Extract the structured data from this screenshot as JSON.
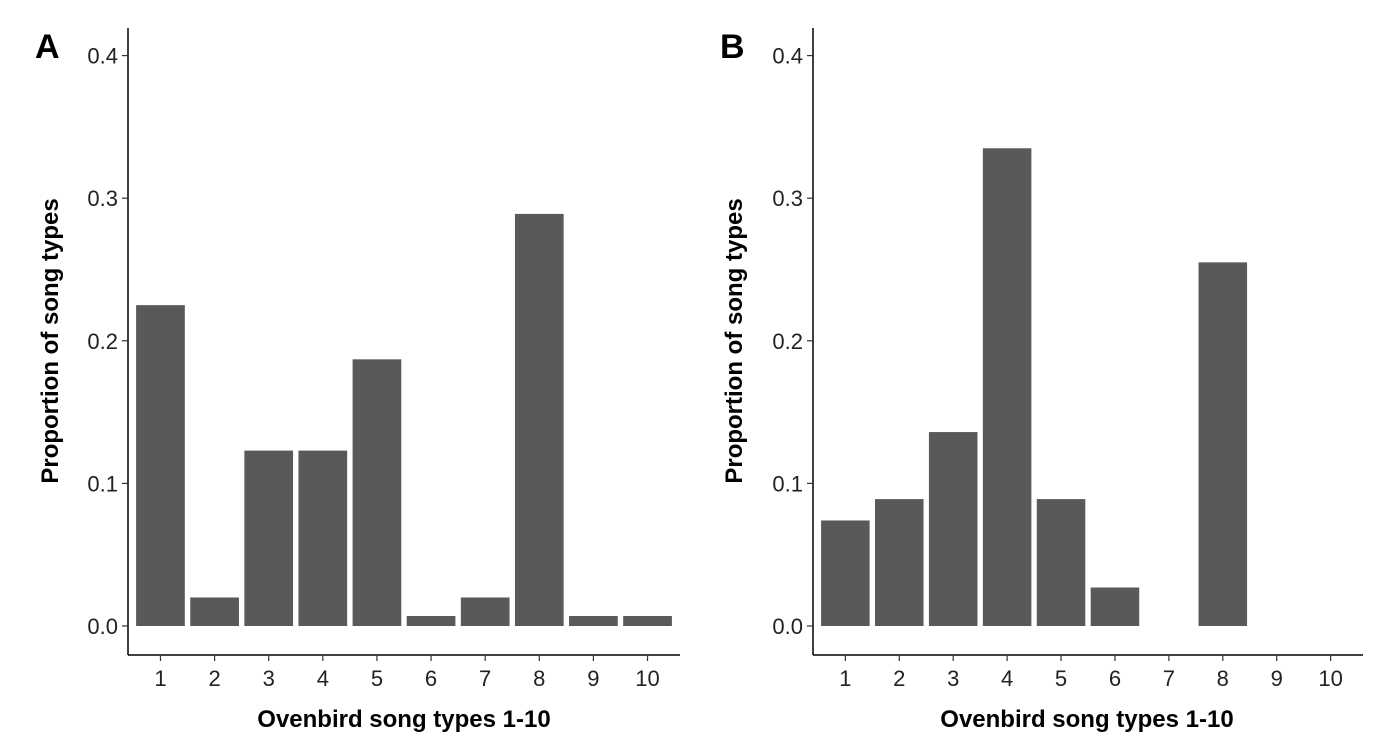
{
  "chart_data": [
    {
      "type": "bar",
      "panel_label": "A",
      "categories": [
        "1",
        "2",
        "3",
        "4",
        "5",
        "6",
        "7",
        "8",
        "9",
        "10"
      ],
      "values": [
        0.225,
        0.02,
        0.123,
        0.123,
        0.187,
        0.007,
        0.02,
        0.289,
        0.007,
        0.007
      ],
      "xlabel": "Ovenbird song types 1-10",
      "ylabel": "Proportion of song types",
      "ylim": [
        0,
        0.42
      ],
      "yticks": [
        "0.0",
        "0.1",
        "0.2",
        "0.3",
        "0.4"
      ],
      "grid": false,
      "bar_color": "#595959"
    },
    {
      "type": "bar",
      "panel_label": "B",
      "categories": [
        "1",
        "2",
        "3",
        "4",
        "5",
        "6",
        "7",
        "8",
        "9",
        "10"
      ],
      "values": [
        0.074,
        0.089,
        0.136,
        0.335,
        0.089,
        0.027,
        0,
        0.255,
        0,
        0
      ],
      "xlabel": "Ovenbird song types 1-10",
      "ylabel": "Proportion of song types",
      "ylim": [
        0,
        0.42
      ],
      "yticks": [
        "0.0",
        "0.1",
        "0.2",
        "0.3",
        "0.4"
      ],
      "grid": false,
      "bar_color": "#595959"
    }
  ]
}
